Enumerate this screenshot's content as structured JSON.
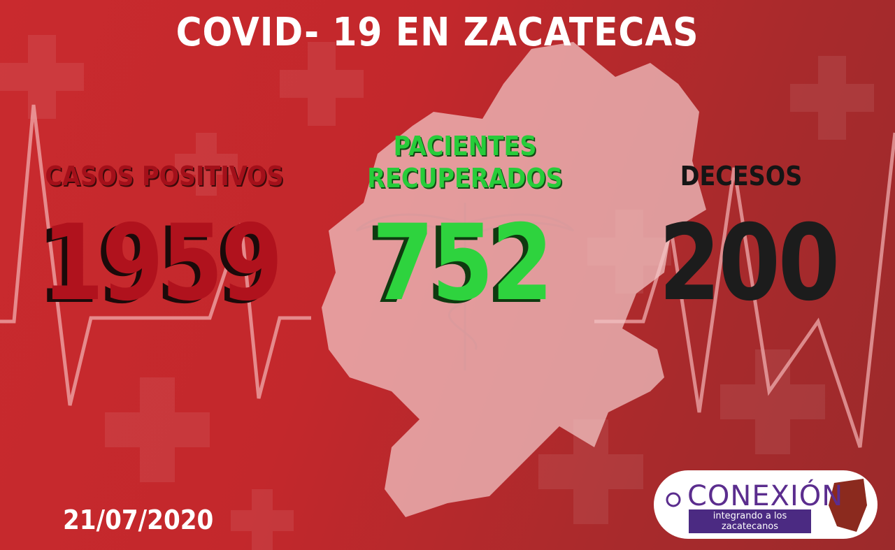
{
  "title": "COVID- 19 EN ZACATECAS",
  "stats": [
    {
      "label": "CASOS POSITIVOS",
      "value": 1959
    },
    {
      "label": "PACIENTES RECUPERADOS",
      "value": 752
    },
    {
      "label": "DECESOS",
      "value": 200
    }
  ],
  "date": "21/07/2020",
  "logo": {
    "name": "CONEXIÓN",
    "tagline": "integrando a los zacatecanos"
  }
}
